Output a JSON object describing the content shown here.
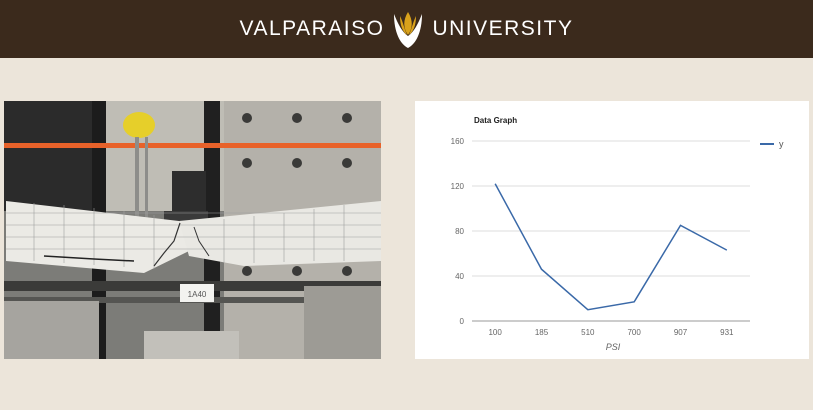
{
  "header": {
    "left_word": "VALPARAISO",
    "right_word": "UNIVERSITY",
    "logo_icon": "torch-flame-icon",
    "background": "#3b2a1c",
    "logo_color": "#d9a21b"
  },
  "photo": {
    "icon": "concrete-beam-test-photo",
    "tag_text": "1A40"
  },
  "chart_data": {
    "type": "line",
    "title": "Data Graph",
    "xlabel": "PSI",
    "ylabel": "",
    "categories": [
      "100",
      "185",
      "510",
      "700",
      "907",
      "931"
    ],
    "series": [
      {
        "name": "y",
        "values": [
          122,
          46,
          10,
          17,
          85,
          63
        ],
        "color": "#3a69a8"
      }
    ],
    "ylim": [
      0,
      160
    ],
    "yticks": [
      0,
      40,
      80,
      120,
      160
    ],
    "grid": true,
    "legend": "right"
  }
}
